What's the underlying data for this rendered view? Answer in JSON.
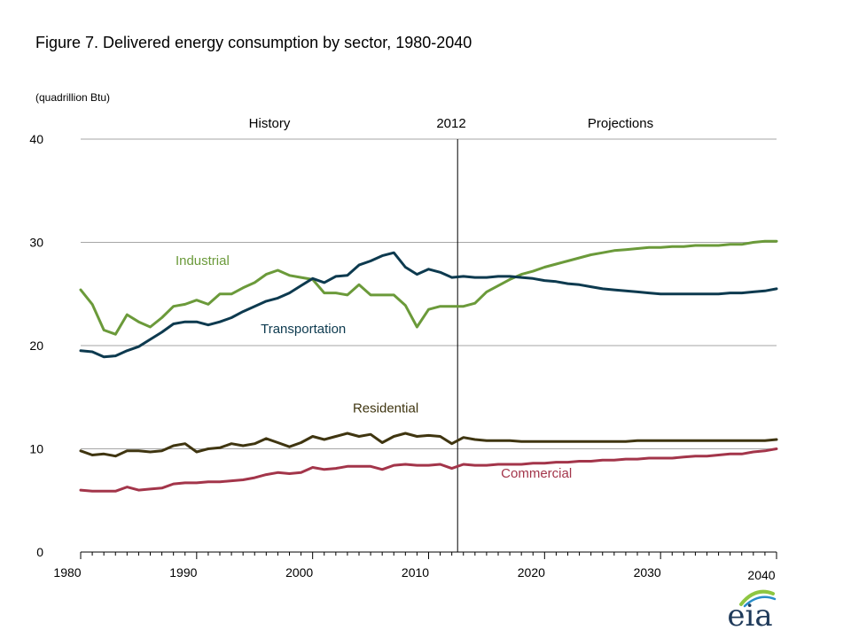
{
  "chart_data": {
    "type": "line",
    "title": "Figure 7. Delivered energy consumption by sector, 1980-2040",
    "ylabel": "(quadrillion  Btu)",
    "xlabel": "",
    "xlim": [
      1980,
      2040
    ],
    "ylim": [
      0,
      40
    ],
    "grid": "horizontal",
    "x_ticks": [
      "1980",
      "1990",
      "2000",
      "2010",
      "2020",
      "2030",
      "2040"
    ],
    "y_ticks": [
      "0",
      "10",
      "20",
      "30",
      "40"
    ],
    "annotations": {
      "history": "History",
      "divider": "2012",
      "projections": "Projections"
    },
    "divider_year": 2012.5,
    "x": [
      1980,
      1981,
      1982,
      1983,
      1984,
      1985,
      1986,
      1987,
      1988,
      1989,
      1990,
      1991,
      1992,
      1993,
      1994,
      1995,
      1996,
      1997,
      1998,
      1999,
      2000,
      2001,
      2002,
      2003,
      2004,
      2005,
      2006,
      2007,
      2008,
      2009,
      2010,
      2011,
      2012,
      2013,
      2014,
      2015,
      2016,
      2017,
      2018,
      2019,
      2020,
      2021,
      2022,
      2023,
      2024,
      2025,
      2026,
      2027,
      2028,
      2029,
      2030,
      2031,
      2032,
      2033,
      2034,
      2035,
      2036,
      2037,
      2038,
      2039,
      2040
    ],
    "series": [
      {
        "name": "Industrial",
        "color": "#6b9a3a",
        "values": [
          25.4,
          24.0,
          21.5,
          21.1,
          23.0,
          22.3,
          21.8,
          22.7,
          23.8,
          24.0,
          24.4,
          24.0,
          25.0,
          25.0,
          25.6,
          26.1,
          26.9,
          27.3,
          26.8,
          26.6,
          26.4,
          25.1,
          25.1,
          24.9,
          25.9,
          24.9,
          24.9,
          24.9,
          23.9,
          21.8,
          23.5,
          23.8,
          23.8,
          23.8,
          24.1,
          25.2,
          25.8,
          26.4,
          26.9,
          27.2,
          27.6,
          27.9,
          28.2,
          28.5,
          28.8,
          29.0,
          29.2,
          29.3,
          29.4,
          29.5,
          29.5,
          29.6,
          29.6,
          29.7,
          29.7,
          29.7,
          29.8,
          29.8,
          30.0,
          30.1,
          30.1
        ],
        "label_pos": [
          1990.5,
          27.8
        ]
      },
      {
        "name": "Transportation",
        "color": "#0d3a4f",
        "values": [
          19.5,
          19.4,
          18.9,
          19.0,
          19.5,
          19.9,
          20.6,
          21.3,
          22.1,
          22.3,
          22.3,
          22.0,
          22.3,
          22.7,
          23.3,
          23.8,
          24.3,
          24.6,
          25.1,
          25.8,
          26.5,
          26.1,
          26.7,
          26.8,
          27.8,
          28.2,
          28.7,
          29.0,
          27.6,
          26.9,
          27.4,
          27.1,
          26.6,
          26.7,
          26.6,
          26.6,
          26.7,
          26.7,
          26.6,
          26.5,
          26.3,
          26.2,
          26.0,
          25.9,
          25.7,
          25.5,
          25.4,
          25.3,
          25.2,
          25.1,
          25.0,
          25.0,
          25.0,
          25.0,
          25.0,
          25.0,
          25.1,
          25.1,
          25.2,
          25.3,
          25.5
        ],
        "label_pos": [
          1999.2,
          21.2
        ]
      },
      {
        "name": "Residential",
        "color": "#3f3510",
        "values": [
          9.8,
          9.4,
          9.5,
          9.3,
          9.8,
          9.8,
          9.7,
          9.8,
          10.3,
          10.5,
          9.7,
          10.0,
          10.1,
          10.5,
          10.3,
          10.5,
          11.0,
          10.6,
          10.2,
          10.6,
          11.2,
          10.9,
          11.2,
          11.5,
          11.2,
          11.4,
          10.6,
          11.2,
          11.5,
          11.2,
          11.3,
          11.2,
          10.5,
          11.1,
          10.9,
          10.8,
          10.8,
          10.8,
          10.7,
          10.7,
          10.7,
          10.7,
          10.7,
          10.7,
          10.7,
          10.7,
          10.7,
          10.7,
          10.8,
          10.8,
          10.8,
          10.8,
          10.8,
          10.8,
          10.8,
          10.8,
          10.8,
          10.8,
          10.8,
          10.8,
          10.9
        ],
        "label_pos": [
          2006.3,
          13.5
        ]
      },
      {
        "name": "Commercial",
        "color": "#a3354a",
        "values": [
          6.0,
          5.9,
          5.9,
          5.9,
          6.3,
          6.0,
          6.1,
          6.2,
          6.6,
          6.7,
          6.7,
          6.8,
          6.8,
          6.9,
          7.0,
          7.2,
          7.5,
          7.7,
          7.6,
          7.7,
          8.2,
          8.0,
          8.1,
          8.3,
          8.3,
          8.3,
          8.0,
          8.4,
          8.5,
          8.4,
          8.4,
          8.5,
          8.1,
          8.5,
          8.4,
          8.4,
          8.5,
          8.5,
          8.5,
          8.6,
          8.6,
          8.7,
          8.7,
          8.8,
          8.8,
          8.9,
          8.9,
          9.0,
          9.0,
          9.1,
          9.1,
          9.1,
          9.2,
          9.3,
          9.3,
          9.4,
          9.5,
          9.5,
          9.7,
          9.8,
          10.0
        ],
        "label_pos": [
          2019.3,
          7.2
        ]
      }
    ]
  }
}
